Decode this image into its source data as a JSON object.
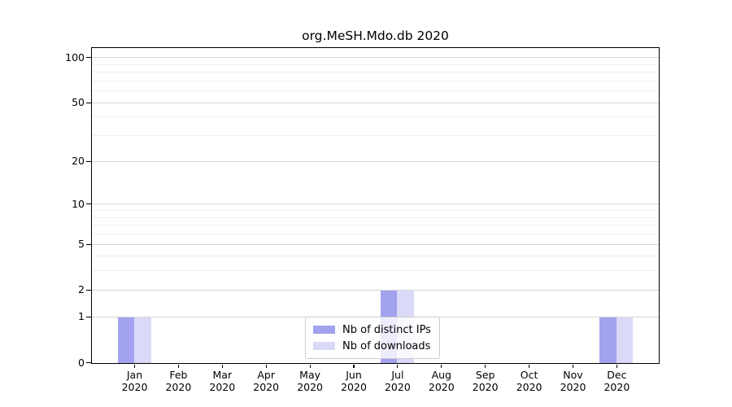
{
  "chart_data": {
    "type": "bar",
    "title": "org.MeSH.Mdo.db 2020",
    "categories": [
      "Jan 2020",
      "Feb 2020",
      "Mar 2020",
      "Apr 2020",
      "May 2020",
      "Jun 2020",
      "Jul 2020",
      "Aug 2020",
      "Sep 2020",
      "Oct 2020",
      "Nov 2020",
      "Dec 2020"
    ],
    "series": [
      {
        "name": "Nb of distinct IPs",
        "color": "#a2a2ef",
        "values": [
          1,
          0,
          0,
          0,
          0,
          0,
          2,
          0,
          0,
          0,
          0,
          1
        ]
      },
      {
        "name": "Nb of downloads",
        "color": "#dadaf8",
        "values": [
          1,
          0,
          0,
          0,
          0,
          0,
          2,
          0,
          0,
          0,
          0,
          1
        ]
      }
    ],
    "xlabel": "",
    "ylabel": "",
    "yscale": "log10(1+v)",
    "ylim": [
      0,
      115
    ],
    "y_major_ticks": [
      0,
      1,
      2,
      5,
      10,
      20,
      50,
      100
    ],
    "y_minor_ticks": [
      3,
      4,
      6,
      7,
      8,
      9,
      30,
      40,
      60,
      70,
      80,
      90
    ],
    "grid": "horizontal",
    "legend_position": "inside-bottom-center",
    "colors": {
      "spine": "#000000",
      "grid_major": "#d6d6d6",
      "grid_minor": "#f0f0f0",
      "text": "#000000",
      "background": "#ffffff"
    }
  }
}
